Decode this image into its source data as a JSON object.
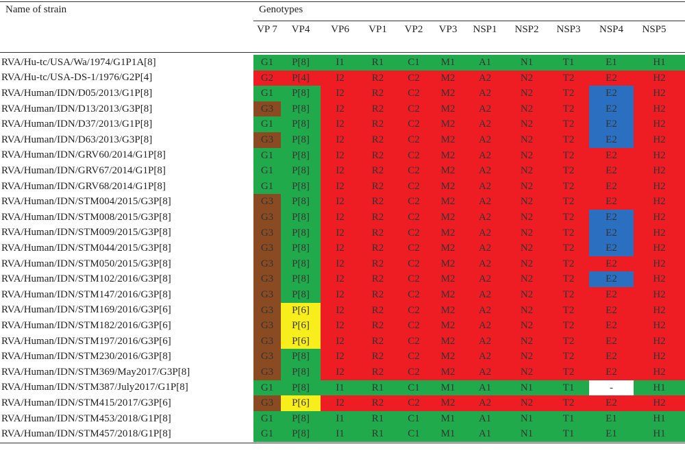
{
  "header": {
    "name_col": "Name of strain",
    "group": "Genotypes",
    "columns": [
      "VP 7",
      "VP4",
      "VP6",
      "VP1",
      "VP2",
      "VP3",
      "NSP1",
      "NSP2",
      "NSP3",
      "NSP4",
      "NSP5"
    ]
  },
  "palette": {
    "green": "#21aa4b",
    "red": "#ee1d23",
    "brown": "#8a4a22",
    "yellow": "#f8ee1c",
    "blue": "#2a6fc0",
    "white": "#ffffff"
  },
  "table": {
    "rows": [
      {
        "name": "RVA/Hu-tc/USA/Wa/1974/G1P1A[8]",
        "cells": [
          "G1",
          "P[8]",
          "I1",
          "R1",
          "C1",
          "M1",
          "A1",
          "N1",
          "T1",
          "E1",
          "H1"
        ],
        "colors": [
          "green",
          "green",
          "green",
          "green",
          "green",
          "green",
          "green",
          "green",
          "green",
          "green",
          "green"
        ]
      },
      {
        "name": "RVA/Hu-tc/USA-DS-1/1976/G2P[4]",
        "cells": [
          "G2",
          "P[4]",
          "I2",
          "R2",
          "C2",
          "M2",
          "A2",
          "N2",
          "T2",
          "E2",
          "H2"
        ],
        "colors": [
          "red",
          "red",
          "red",
          "red",
          "red",
          "red",
          "red",
          "red",
          "red",
          "red",
          "red"
        ]
      },
      {
        "name": "RVA/Human/IDN/D05/2013/G1P[8]",
        "cells": [
          "G1",
          "P[8]",
          "I2",
          "R2",
          "C2",
          "M2",
          "A2",
          "N2",
          "T2",
          "E2",
          "H2"
        ],
        "colors": [
          "green",
          "green",
          "red",
          "red",
          "red",
          "red",
          "red",
          "red",
          "red",
          "blue",
          "red"
        ]
      },
      {
        "name": "RVA/Human/IDN/D13/2013/G3P[8]",
        "cells": [
          "G3",
          "P[8]",
          "I2",
          "R2",
          "C2",
          "M2",
          "A2",
          "N2",
          "T2",
          "E2",
          "H2"
        ],
        "colors": [
          "brown",
          "green",
          "red",
          "red",
          "red",
          "red",
          "red",
          "red",
          "red",
          "blue",
          "red"
        ]
      },
      {
        "name": "RVA/Human/IDN/D37/2013/G1P[8]",
        "cells": [
          "G1",
          "P[8]",
          "I2",
          "R2",
          "C2",
          "M2",
          "A2",
          "N2",
          "T2",
          "E2",
          "H2"
        ],
        "colors": [
          "green",
          "green",
          "red",
          "red",
          "red",
          "red",
          "red",
          "red",
          "red",
          "blue",
          "red"
        ]
      },
      {
        "name": "RVA/Human/IDN/D63/2013/G3P[8]",
        "cells": [
          "G3",
          "P[8]",
          "I2",
          "R2",
          "C2",
          "M2",
          "A2",
          "N2",
          "T2",
          "E2",
          "H2"
        ],
        "colors": [
          "brown",
          "green",
          "red",
          "red",
          "red",
          "red",
          "red",
          "red",
          "red",
          "blue",
          "red"
        ]
      },
      {
        "name": "RVA/Human/IDN/GRV60/2014/G1P[8]",
        "cells": [
          "G1",
          "P[8]",
          "I2",
          "R2",
          "C2",
          "M2",
          "A2",
          "N2",
          "T2",
          "E2",
          "H2"
        ],
        "colors": [
          "green",
          "green",
          "red",
          "red",
          "red",
          "red",
          "red",
          "red",
          "red",
          "red",
          "red"
        ]
      },
      {
        "name": "RVA/Human/IDN/GRV67/2014/G1P[8]",
        "cells": [
          "G1",
          "P[8]",
          "I2",
          "R2",
          "C2",
          "M2",
          "A2",
          "N2",
          "T2",
          "E2",
          "H2"
        ],
        "colors": [
          "green",
          "green",
          "red",
          "red",
          "red",
          "red",
          "red",
          "red",
          "red",
          "red",
          "red"
        ]
      },
      {
        "name": "RVA/Human/IDN/GRV68/2014/G1P[8]",
        "cells": [
          "G1",
          "P[8]",
          "I2",
          "R2",
          "C2",
          "M2",
          "A2",
          "N2",
          "T2",
          "E2",
          "H2"
        ],
        "colors": [
          "green",
          "green",
          "red",
          "red",
          "red",
          "red",
          "red",
          "red",
          "red",
          "red",
          "red"
        ]
      },
      {
        "name": "RVA/Human/IDN/STM004/2015/G3P[8]",
        "cells": [
          "G3",
          "P[8]",
          "I2",
          "R2",
          "C2",
          "M2",
          "A2",
          "N2",
          "T2",
          "E2",
          "H2"
        ],
        "colors": [
          "brown",
          "green",
          "red",
          "red",
          "red",
          "red",
          "red",
          "red",
          "red",
          "red",
          "red"
        ]
      },
      {
        "name": "RVA/Human/IDN/STM008/2015/G3P[8]",
        "cells": [
          "G3",
          "P[8]",
          "I2",
          "R2",
          "C2",
          "M2",
          "A2",
          "N2",
          "T2",
          "E2",
          "H2"
        ],
        "colors": [
          "brown",
          "green",
          "red",
          "red",
          "red",
          "red",
          "red",
          "red",
          "red",
          "blue",
          "red"
        ]
      },
      {
        "name": "RVA/Human/IDN/STM009/2015/G3P[8]",
        "cells": [
          "G3",
          "P[8]",
          "I2",
          "R2",
          "C2",
          "M2",
          "A2",
          "N2",
          "T2",
          "E2",
          "H2"
        ],
        "colors": [
          "brown",
          "green",
          "red",
          "red",
          "red",
          "red",
          "red",
          "red",
          "red",
          "blue",
          "red"
        ]
      },
      {
        "name": "RVA/Human/IDN/STM044/2015/G3P[8]",
        "cells": [
          "G3",
          "P[8]",
          "I2",
          "R2",
          "C2",
          "M2",
          "A2",
          "N2",
          "T2",
          "E2",
          "H2"
        ],
        "colors": [
          "brown",
          "green",
          "red",
          "red",
          "red",
          "red",
          "red",
          "red",
          "red",
          "blue",
          "red"
        ]
      },
      {
        "name": "RVA/Human/IDN/STM050/2015/G3P[8]",
        "cells": [
          "G3",
          "P[8]",
          "I2",
          "R2",
          "C2",
          "M2",
          "A2",
          "N2",
          "T2",
          "E2",
          "H2"
        ],
        "colors": [
          "brown",
          "green",
          "red",
          "red",
          "red",
          "red",
          "red",
          "red",
          "red",
          "red",
          "red"
        ]
      },
      {
        "name": "RVA/Human/IDN/STM102/2016/G3P[8]",
        "cells": [
          "G3",
          "P[8]",
          "I2",
          "R2",
          "C2",
          "M2",
          "A2",
          "N2",
          "T2",
          "E2",
          "H2"
        ],
        "colors": [
          "brown",
          "green",
          "red",
          "red",
          "red",
          "red",
          "red",
          "red",
          "red",
          "blue",
          "red"
        ]
      },
      {
        "name": "RVA/Human/IDN/STM147/2016/G3P[8]",
        "cells": [
          "G3",
          "P[8]",
          "I2",
          "R2",
          "C2",
          "M2",
          "A2",
          "N2",
          "T2",
          "E2",
          "H2"
        ],
        "colors": [
          "brown",
          "green",
          "red",
          "red",
          "red",
          "red",
          "red",
          "red",
          "red",
          "red",
          "red"
        ]
      },
      {
        "name": "RVA/Human/IDN/STM169/2016/G3P[6]",
        "cells": [
          "G3",
          "P[6]",
          "I2",
          "R2",
          "C2",
          "M2",
          "A2",
          "N2",
          "T2",
          "E2",
          "H2"
        ],
        "colors": [
          "brown",
          "yellow",
          "red",
          "red",
          "red",
          "red",
          "red",
          "red",
          "red",
          "red",
          "red"
        ]
      },
      {
        "name": "RVA/Human/IDN/STM182/2016/G3P[6]",
        "cells": [
          "G3",
          "P[6]",
          "I2",
          "R2",
          "C2",
          "M2",
          "A2",
          "N2",
          "T2",
          "E2",
          "H2"
        ],
        "colors": [
          "brown",
          "yellow",
          "red",
          "red",
          "red",
          "red",
          "red",
          "red",
          "red",
          "red",
          "red"
        ]
      },
      {
        "name": "RVA/Human/IDN/STM197/2016/G3P[6]",
        "cells": [
          "G3",
          "P[6]",
          "I2",
          "R2",
          "C2",
          "M2",
          "A2",
          "N2",
          "T2",
          "E2",
          "H2"
        ],
        "colors": [
          "brown",
          "yellow",
          "red",
          "red",
          "red",
          "red",
          "red",
          "red",
          "red",
          "red",
          "red"
        ]
      },
      {
        "name": "RVA/Human/IDN/STM230/2016/G3P[8]",
        "cells": [
          "G3",
          "P[8]",
          "I2",
          "R2",
          "C2",
          "M2",
          "A2",
          "N2",
          "T2",
          "E2",
          "H2"
        ],
        "colors": [
          "brown",
          "green",
          "red",
          "red",
          "red",
          "red",
          "red",
          "red",
          "red",
          "red",
          "red"
        ]
      },
      {
        "name": "RVA/Human/IDN/STM369/May2017/G3P[8]",
        "cells": [
          "G3",
          "P[8]",
          "I2",
          "R2",
          "C2",
          "M2",
          "A2",
          "N2",
          "T2",
          "E2",
          "H2"
        ],
        "colors": [
          "brown",
          "green",
          "red",
          "red",
          "red",
          "red",
          "red",
          "red",
          "red",
          "red",
          "red"
        ]
      },
      {
        "name": "RVA/Human/IDN/STM387/July2017/G1P[8]",
        "cells": [
          "G1",
          "P[8]",
          "I1",
          "R1",
          "C1",
          "M1",
          "A1",
          "N1",
          "T1",
          "-",
          "H1"
        ],
        "colors": [
          "green",
          "green",
          "green",
          "green",
          "green",
          "green",
          "green",
          "green",
          "green",
          "white",
          "green"
        ]
      },
      {
        "name": "RVA/Human/IDN/STM415/2017/G3P[6]",
        "cells": [
          "G3",
          "P[6]",
          "I2",
          "R2",
          "C2",
          "M2",
          "A2",
          "N2",
          "T2",
          "E2",
          "H2"
        ],
        "colors": [
          "brown",
          "yellow",
          "red",
          "red",
          "red",
          "red",
          "red",
          "red",
          "red",
          "red",
          "red"
        ]
      },
      {
        "name": "RVA/Human/IDN/STM453/2018/G1P[8]",
        "cells": [
          "G1",
          "P[8]",
          "I1",
          "R1",
          "C1",
          "M1",
          "A1",
          "N1",
          "T1",
          "E1",
          "H1"
        ],
        "colors": [
          "green",
          "green",
          "green",
          "green",
          "green",
          "green",
          "green",
          "green",
          "green",
          "green",
          "green"
        ]
      },
      {
        "name": "RVA/Human/IDN/STM457/2018/G1P[8]",
        "cells": [
          "G1",
          "P[8]",
          "I1",
          "R1",
          "C1",
          "M1",
          "A1",
          "N1",
          "T1",
          "E1",
          "H1"
        ],
        "colors": [
          "green",
          "green",
          "green",
          "green",
          "green",
          "green",
          "green",
          "green",
          "green",
          "green",
          "green"
        ]
      }
    ]
  }
}
